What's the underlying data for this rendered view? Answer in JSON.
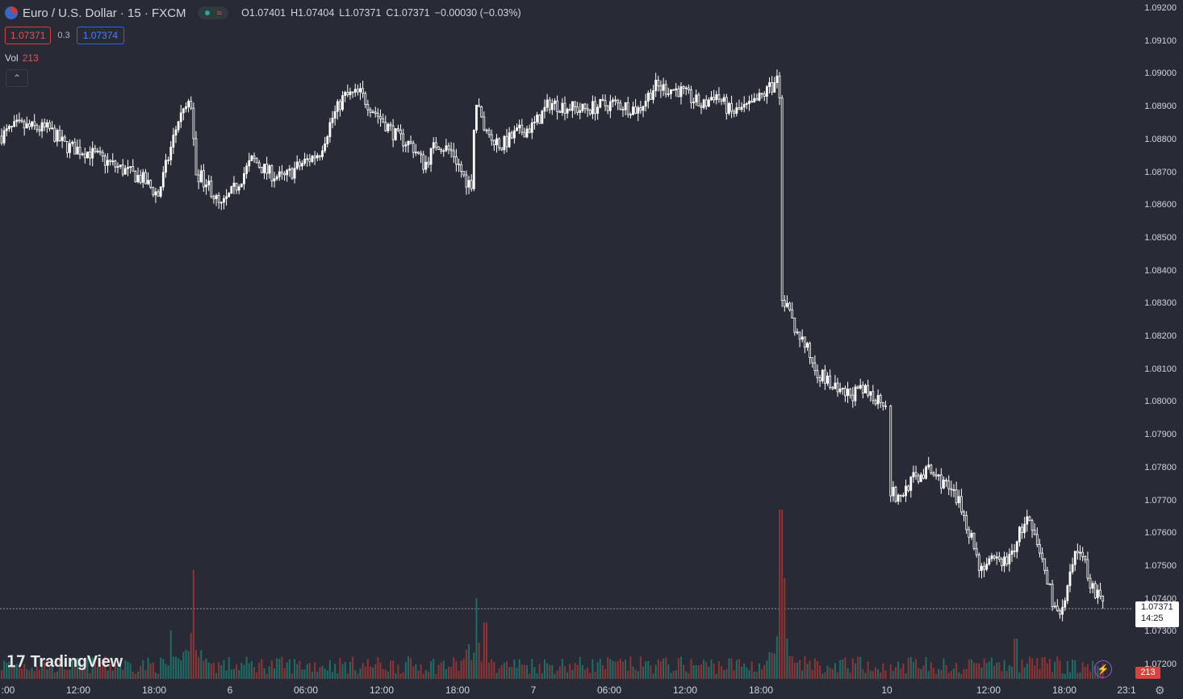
{
  "header": {
    "symbol": "Euro / U.S. Dollar · 15 · FXCM",
    "open": "O1.07401",
    "high": "H1.07404",
    "low": "L1.07371",
    "close": "C1.07371",
    "change": "−0.00030 (−0.03%)"
  },
  "quote": {
    "bid": "1.07371",
    "spread": "0.3",
    "ask": "1.07374"
  },
  "volume": {
    "label": "Vol",
    "value": "213"
  },
  "y_axis_labels": [
    "1.09200",
    "1.09100",
    "1.09000",
    "1.08900",
    "1.08800",
    "1.08700",
    "1.08600",
    "1.08500",
    "1.08400",
    "1.08300",
    "1.08200",
    "1.08100",
    "1.08000",
    "1.07900",
    "1.07800",
    "1.07700",
    "1.07600",
    "1.07500",
    "1.07400",
    "1.07300",
    "1.07200"
  ],
  "x_axis_labels": [
    ":00",
    "12:00",
    "18:00",
    "6",
    "06:00",
    "12:00",
    "18:00",
    "7",
    "06:00",
    "12:00",
    "18:00",
    "10",
    "12:00",
    "18:00",
    "23:1"
  ],
  "last_price": {
    "price": "1.07371",
    "countdown": "14:25"
  },
  "volume_tag": "213",
  "logo_text": "TradingView",
  "colors": {
    "background": "#282b36",
    "up": "#26a69a",
    "down": "#ef5350",
    "candle": "#ffffff"
  },
  "chart_data": {
    "type": "candlestick",
    "ylim": [
      1.0717,
      1.0921
    ],
    "anchors": [
      [
        0,
        1.0881
      ],
      [
        20,
        1.0884
      ],
      [
        60,
        1.0883
      ],
      [
        80,
        1.0878
      ],
      [
        110,
        1.0876
      ],
      [
        140,
        1.0872
      ],
      [
        175,
        1.0868
      ],
      [
        195,
        1.0863
      ],
      [
        205,
        1.0872
      ],
      [
        220,
        1.0886
      ],
      [
        236,
        1.0891
      ],
      [
        242,
        1.087
      ],
      [
        258,
        1.0866
      ],
      [
        272,
        1.0859
      ],
      [
        290,
        1.0865
      ],
      [
        312,
        1.0874
      ],
      [
        330,
        1.087
      ],
      [
        350,
        1.0868
      ],
      [
        370,
        1.0872
      ],
      [
        395,
        1.0876
      ],
      [
        410,
        1.0886
      ],
      [
        425,
        1.0893
      ],
      [
        445,
        1.0894
      ],
      [
        465,
        1.0888
      ],
      [
        490,
        1.0881
      ],
      [
        510,
        1.0878
      ],
      [
        525,
        1.0872
      ],
      [
        540,
        1.0879
      ],
      [
        560,
        1.0876
      ],
      [
        575,
        1.0868
      ],
      [
        583,
        1.0866
      ],
      [
        588,
        1.0892
      ],
      [
        600,
        1.0883
      ],
      [
        620,
        1.0878
      ],
      [
        640,
        1.0882
      ],
      [
        660,
        1.0884
      ],
      [
        680,
        1.0891
      ],
      [
        720,
        1.0889
      ],
      [
        760,
        1.0891
      ],
      [
        790,
        1.0889
      ],
      [
        810,
        1.0896
      ],
      [
        840,
        1.0895
      ],
      [
        870,
        1.089
      ],
      [
        885,
        1.0894
      ],
      [
        905,
        1.0888
      ],
      [
        930,
        1.089
      ],
      [
        955,
        1.0896
      ],
      [
        962,
        1.0898
      ],
      [
        966,
        1.0893
      ],
      [
        968,
        1.0832
      ],
      [
        980,
        1.0825
      ],
      [
        995,
        1.0818
      ],
      [
        1010,
        1.081
      ],
      [
        1040,
        1.0802
      ],
      [
        1070,
        1.0803
      ],
      [
        1098,
        1.08
      ],
      [
        1100,
        1.0774
      ],
      [
        1112,
        1.077
      ],
      [
        1128,
        1.0776
      ],
      [
        1150,
        1.0779
      ],
      [
        1170,
        1.0775
      ],
      [
        1190,
        1.0768
      ],
      [
        1205,
        1.0757
      ],
      [
        1212,
        1.075
      ],
      [
        1230,
        1.0751
      ],
      [
        1250,
        1.0752
      ],
      [
        1262,
        1.076
      ],
      [
        1272,
        1.0764
      ],
      [
        1290,
        1.0752
      ],
      [
        1305,
        1.0738
      ],
      [
        1313,
        1.0734
      ],
      [
        1320,
        1.074
      ],
      [
        1330,
        1.0752
      ],
      [
        1338,
        1.0756
      ],
      [
        1350,
        1.0745
      ],
      [
        1368,
        1.0737
      ]
    ],
    "gaps": [
      [
        1098,
        1100
      ]
    ],
    "volume_spikes": [
      [
        238,
        135
      ],
      [
        590,
        100
      ],
      [
        967,
        210
      ],
      [
        972,
        125
      ],
      [
        210,
        60
      ],
      [
        600,
        70
      ],
      [
        1258,
        50
      ]
    ]
  }
}
